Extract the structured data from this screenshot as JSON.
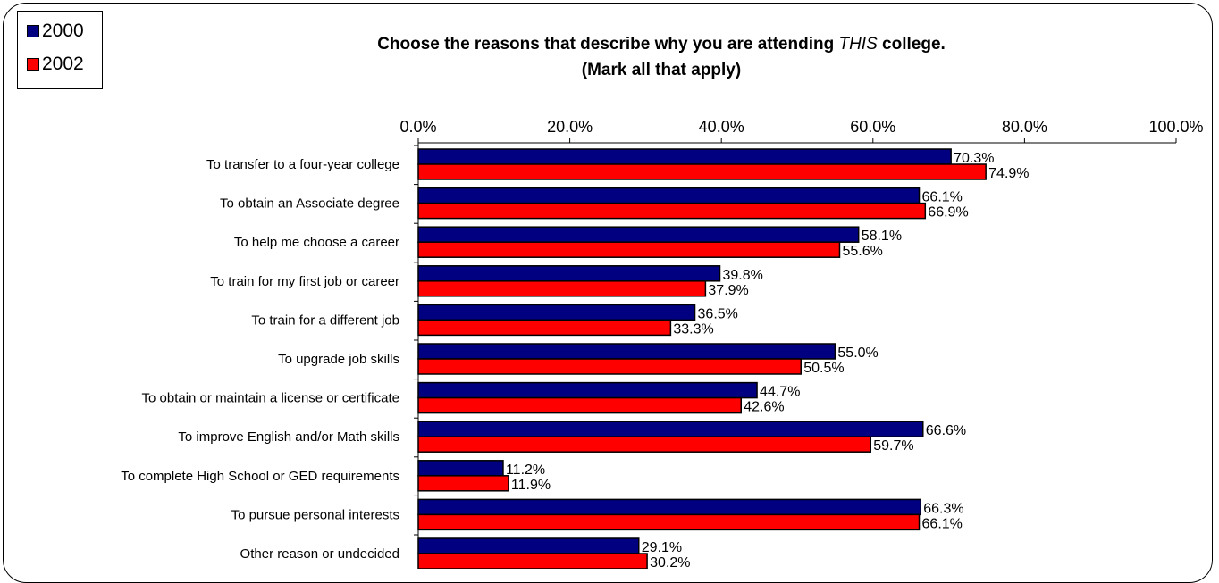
{
  "chart_data": {
    "type": "bar",
    "orientation": "horizontal",
    "title_parts": [
      "Choose the reasons that describe why you are attending ",
      "THIS",
      " college."
    ],
    "subtitle": "(Mark all that apply)",
    "xlim": [
      0,
      100
    ],
    "x_ticks": [
      "0.0%",
      "20.0%",
      "40.0%",
      "60.0%",
      "80.0%",
      "100.0%"
    ],
    "x_axis_position": "top",
    "grid": false,
    "legend_placement": "top-left",
    "categories": [
      "To transfer to a four-year college",
      "To obtain an Associate degree",
      "To help me choose a career",
      "To train for my first job or career",
      "To train for a different job",
      "To upgrade job skills",
      "To obtain or maintain a license or certificate",
      "To improve English and/or Math skills",
      "To complete High School or GED requirements",
      "To pursue personal interests",
      "Other reason or undecided"
    ],
    "series": [
      {
        "name": "2000",
        "color": "#000080",
        "values": [
          70.3,
          66.1,
          58.1,
          39.8,
          36.5,
          55.0,
          44.7,
          66.6,
          11.2,
          66.3,
          29.1
        ],
        "labels": [
          "70.3%",
          "66.1%",
          "58.1%",
          "39.8%",
          "36.5%",
          "55.0%",
          "44.7%",
          "66.6%",
          "11.2%",
          "66.3%",
          "29.1%"
        ]
      },
      {
        "name": "2002",
        "color": "#FF0000",
        "values": [
          74.9,
          66.9,
          55.6,
          37.9,
          33.3,
          50.5,
          42.6,
          59.7,
          11.9,
          66.1,
          30.2
        ],
        "labels": [
          "74.9%",
          "66.9%",
          "55.6%",
          "37.9%",
          "33.3%",
          "50.5%",
          "42.6%",
          "59.7%",
          "11.9%",
          "66.1%",
          "30.2%"
        ]
      }
    ]
  }
}
